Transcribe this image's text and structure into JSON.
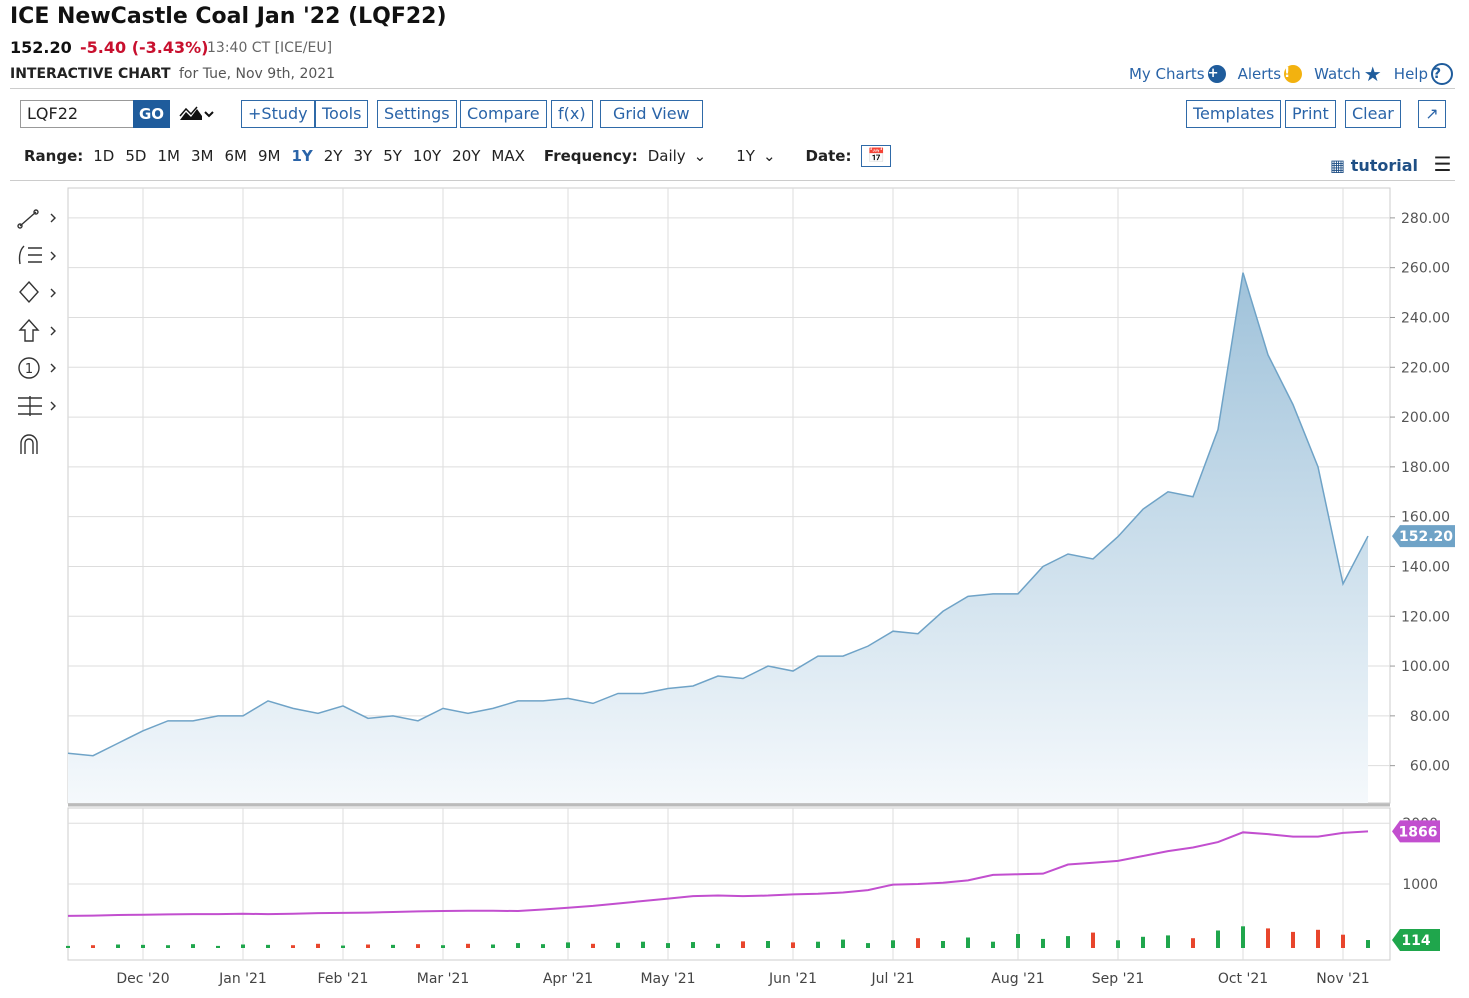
{
  "header": {
    "title": "ICE NewCastle Coal Jan '22 (LQF22)",
    "last": "152.20",
    "change": "-5.40 (-3.43%)",
    "time": "13:40 CT [ICE/EU]",
    "chart_label": "INTERACTIVE CHART",
    "date_text": "for Tue, Nov 9th, 2021"
  },
  "nav_links": [
    "My Charts",
    "Alerts",
    "Watch",
    "Help"
  ],
  "toolbar": {
    "symbol": "LQF22",
    "go": "GO",
    "buttons": [
      "+Study",
      "Tools",
      "Settings",
      "Compare",
      "f(x)",
      "Grid View"
    ],
    "right_buttons": [
      "Templates",
      "Print",
      "Clear"
    ]
  },
  "range_bar": {
    "label": "Range:",
    "options": [
      "1D",
      "5D",
      "1M",
      "3M",
      "6M",
      "9M",
      "1Y",
      "2Y",
      "3Y",
      "5Y",
      "10Y",
      "20Y",
      "MAX"
    ],
    "selected": 6,
    "frequency_label": "Frequency:",
    "frequency": "Daily",
    "period": "1Y",
    "date_label": "Date:",
    "tutorial": "tutorial"
  },
  "chart_data": [
    {
      "type": "area",
      "categories": [
        null,
        null,
        null,
        "Dec '20",
        null,
        null,
        null,
        "Jan '21",
        null,
        null,
        null,
        "Feb '21",
        null,
        null,
        null,
        "Mar '21",
        null,
        null,
        null,
        null,
        "Apr '21",
        null,
        null,
        null,
        "May '21",
        null,
        null,
        null,
        null,
        "Jun '21",
        null,
        null,
        null,
        "Jul '21",
        null,
        null,
        null,
        null,
        "Aug '21",
        null,
        null,
        null,
        "Sep '21",
        null,
        null,
        null,
        null,
        "Oct '21",
        null,
        null,
        null,
        "Nov '21",
        null
      ],
      "values": [
        65,
        64,
        69,
        74,
        78,
        78,
        80,
        80,
        86,
        83,
        81,
        84,
        79,
        80,
        78,
        83,
        81,
        83,
        86,
        86,
        87,
        85,
        89,
        89,
        91,
        92,
        96,
        95,
        100,
        98,
        104,
        104,
        108,
        114,
        113,
        122,
        128,
        129,
        129,
        140,
        145,
        143,
        152,
        163,
        170,
        168,
        195,
        258,
        225,
        205,
        180,
        133,
        152.2
      ],
      "value_labels": [
        null,
        null,
        null,
        null,
        null,
        null,
        null,
        null,
        null,
        null,
        null,
        null,
        null,
        null,
        null,
        null,
        null,
        null,
        null,
        null,
        null,
        null,
        null,
        null,
        null,
        null,
        null,
        null,
        null,
        null,
        null,
        null,
        null,
        null,
        null,
        null,
        null,
        null,
        null,
        null,
        null,
        null,
        null,
        null,
        null,
        null,
        null,
        null,
        null,
        null,
        null,
        null,
        "152.20"
      ],
      "color": "#6fa3c7",
      "ylim": [
        45,
        292
      ],
      "yticks": [
        {
          "value": 60,
          "label": "60.00"
        },
        {
          "value": 80,
          "label": "80.00"
        },
        {
          "value": 100,
          "label": "100.00"
        },
        {
          "value": 120,
          "label": "120.00"
        },
        {
          "value": 140,
          "label": "140.00"
        },
        {
          "value": 160,
          "label": "160.00"
        },
        {
          "value": 180,
          "label": "180.00"
        },
        {
          "value": 200,
          "label": "200.00"
        },
        {
          "value": 220,
          "label": "220.00"
        },
        {
          "value": 240,
          "label": "240.00"
        },
        {
          "value": 260,
          "label": "260.00"
        },
        {
          "value": 280,
          "label": "280.00"
        }
      ],
      "grid": true
    },
    {
      "type": "line_bar",
      "series": [
        {
          "type": "line",
          "color": "#c24fcf",
          "values": [
            475,
            480,
            490,
            495,
            500,
            505,
            505,
            510,
            505,
            510,
            520,
            525,
            530,
            540,
            550,
            555,
            560,
            560,
            555,
            580,
            610,
            640,
            680,
            720,
            760,
            800,
            810,
            800,
            810,
            830,
            840,
            860,
            900,
            990,
            1000,
            1020,
            1060,
            1150,
            1160,
            1170,
            1320,
            1350,
            1380,
            1460,
            1540,
            1600,
            1690,
            1850,
            1820,
            1780,
            1780,
            1840,
            1866
          ]
        },
        {
          "type": "bar",
          "axis": "y2",
          "up_color": "#1fa64c",
          "down_color": "#e8452c",
          "values": [
            30,
            40,
            50,
            45,
            40,
            55,
            30,
            50,
            45,
            40,
            60,
            35,
            50,
            45,
            55,
            40,
            60,
            50,
            70,
            55,
            80,
            60,
            75,
            90,
            70,
            85,
            60,
            95,
            100,
            80,
            90,
            120,
            70,
            110,
            140,
            100,
            150,
            90,
            200,
            130,
            170,
            220,
            110,
            160,
            180,
            140,
            250,
            310,
            280,
            230,
            260,
            190,
            114
          ]
        }
      ],
      "ylim": [
        -250,
        2250
      ],
      "yticks": [
        1000,
        2000
      ],
      "y2lim": [
        0,
        2000
      ],
      "grid": true
    }
  ]
}
